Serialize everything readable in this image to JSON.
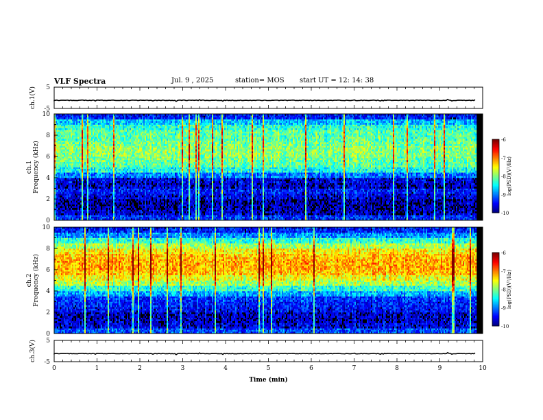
{
  "header": {
    "title": "VLF Spectra",
    "date": "Jul. 9 , 2025",
    "station": "station= MOS",
    "start": "start UT =  12: 14: 38"
  },
  "chart_data": [
    {
      "type": "line",
      "name": "ch1-waveform",
      "ylabel": "ch.1(V)",
      "ylim": [
        -5,
        5
      ],
      "yticks": [
        "5",
        "-5"
      ],
      "x": [
        0,
        9.83
      ],
      "values": [
        -1.2,
        -1.2
      ]
    },
    {
      "type": "heatmap",
      "name": "ch1-spectrogram",
      "ylabel": "ch.1\nFrequency (kHz)",
      "ylim": [
        0,
        10
      ],
      "yticks": [
        "0",
        "2",
        "4",
        "6",
        "8",
        "10"
      ],
      "xlim": [
        0,
        10
      ],
      "data_end_min": 9.83,
      "freq_bands_khz": [
        0,
        0.5,
        1,
        1.5,
        2,
        2.5,
        3,
        3.5,
        4,
        4.5,
        5,
        5.5,
        6,
        6.5,
        7,
        7.5,
        8,
        8.5,
        9,
        9.5,
        10
      ],
      "mean_log_psd": [
        -9.3,
        -9.7,
        -9.8,
        -9.8,
        -9.6,
        -9.4,
        -9.7,
        -9.6,
        -9.0,
        -8.4,
        -8.1,
        -8.0,
        -7.9,
        -7.9,
        -8.0,
        -8.1,
        -8.1,
        -8.3,
        -8.7,
        -9.4,
        -9.9
      ],
      "colorbar": {
        "label": "log(PSD)(V²/Hz)",
        "min": -10,
        "max": -6,
        "ticks": [
          "-6",
          "-7",
          "-8",
          "-9",
          "-10"
        ]
      }
    },
    {
      "type": "heatmap",
      "name": "ch2-spectrogram",
      "ylabel": "ch.2\nFrequency (kHz)",
      "ylim": [
        0,
        10
      ],
      "yticks": [
        "0",
        "2",
        "4",
        "6",
        "8",
        "10"
      ],
      "xlim": [
        0,
        10
      ],
      "data_end_min": 9.83,
      "freq_bands_khz": [
        0,
        0.5,
        1,
        1.5,
        2,
        2.5,
        3,
        3.5,
        4,
        4.5,
        5,
        5.5,
        6,
        6.5,
        7,
        7.5,
        8,
        8.5,
        9,
        9.5,
        10
      ],
      "mean_log_psd": [
        -9.2,
        -9.6,
        -9.7,
        -9.7,
        -9.5,
        -9.4,
        -9.3,
        -8.8,
        -8.3,
        -7.8,
        -7.5,
        -7.2,
        -7.1,
        -7.1,
        -7.2,
        -7.4,
        -7.8,
        -8.3,
        -8.9,
        -9.4,
        -9.8
      ],
      "colorbar": {
        "label": "log(PSD)(V²/Hz)",
        "min": -10,
        "max": -6,
        "ticks": [
          "-6",
          "-7",
          "-8",
          "-9",
          "-10"
        ]
      }
    },
    {
      "type": "line",
      "name": "ch3-waveform",
      "ylabel": "ch.3(V)",
      "ylim": [
        -5,
        5
      ],
      "yticks": [
        "5",
        "-5"
      ],
      "x": [
        0,
        9.83
      ],
      "values": [
        -1.2,
        -1.2
      ]
    }
  ],
  "xaxis": {
    "label": "Time (min)",
    "ticks": [
      "0",
      "1",
      "2",
      "3",
      "4",
      "5",
      "6",
      "7",
      "8",
      "9",
      "10"
    ],
    "xlim": [
      0,
      10
    ]
  }
}
